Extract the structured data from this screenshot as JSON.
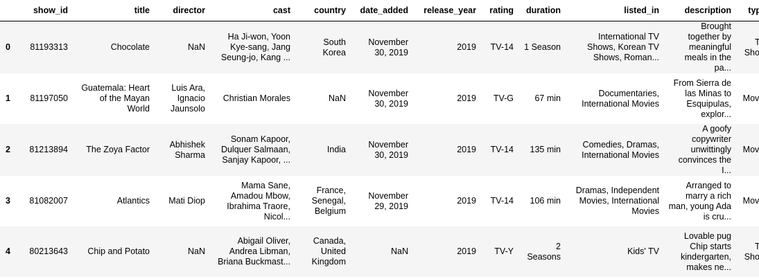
{
  "columns": [
    "show_id",
    "title",
    "director",
    "cast",
    "country",
    "date_added",
    "release_year",
    "rating",
    "duration",
    "listed_in",
    "description",
    "type"
  ],
  "rows": [
    {
      "index": "0",
      "show_id": "81193313",
      "title": "Chocolate",
      "director": "NaN",
      "cast": "Ha Ji-won, Yoon Kye-sang, Jang Seung-jo, Kang ...",
      "country": "South Korea",
      "date_added": "November 30, 2019",
      "release_year": "2019",
      "rating": "TV-14",
      "duration": "1 Season",
      "listed_in": "International TV Shows, Korean TV Shows, Roman...",
      "description": "Brought together by meaningful meals in the pa...",
      "type": "TV Show"
    },
    {
      "index": "1",
      "show_id": "81197050",
      "title": "Guatemala: Heart of the Mayan World",
      "director": "Luis Ara, Ignacio Jaunsolo",
      "cast": "Christian Morales",
      "country": "NaN",
      "date_added": "November 30, 2019",
      "release_year": "2019",
      "rating": "TV-G",
      "duration": "67 min",
      "listed_in": "Documentaries, International Movies",
      "description": "From Sierra de las Minas to Esquipulas, explor...",
      "type": "Movie"
    },
    {
      "index": "2",
      "show_id": "81213894",
      "title": "The Zoya Factor",
      "director": "Abhishek Sharma",
      "cast": "Sonam Kapoor, Dulquer Salmaan, Sanjay Kapoor, ...",
      "country": "India",
      "date_added": "November 30, 2019",
      "release_year": "2019",
      "rating": "TV-14",
      "duration": "135 min",
      "listed_in": "Comedies, Dramas, International Movies",
      "description": "A goofy copywriter unwittingly convinces the I...",
      "type": "Movie"
    },
    {
      "index": "3",
      "show_id": "81082007",
      "title": "Atlantics",
      "director": "Mati Diop",
      "cast": "Mama Sane, Amadou Mbow, Ibrahima Traore, Nicol...",
      "country": "France, Senegal, Belgium",
      "date_added": "November 29, 2019",
      "release_year": "2019",
      "rating": "TV-14",
      "duration": "106 min",
      "listed_in": "Dramas, Independent Movies, International Movies",
      "description": "Arranged to marry a rich man, young Ada is cru...",
      "type": "Movie"
    },
    {
      "index": "4",
      "show_id": "80213643",
      "title": "Chip and Potato",
      "director": "NaN",
      "cast": "Abigail Oliver, Andrea Libman, Briana Buckmast...",
      "country": "Canada, United Kingdom",
      "date_added": "NaN",
      "release_year": "2019",
      "rating": "TV-Y",
      "duration": "2 Seasons",
      "listed_in": "Kids' TV",
      "description": "Lovable pug Chip starts kindergarten, makes ne...",
      "type": "TV Show"
    }
  ]
}
